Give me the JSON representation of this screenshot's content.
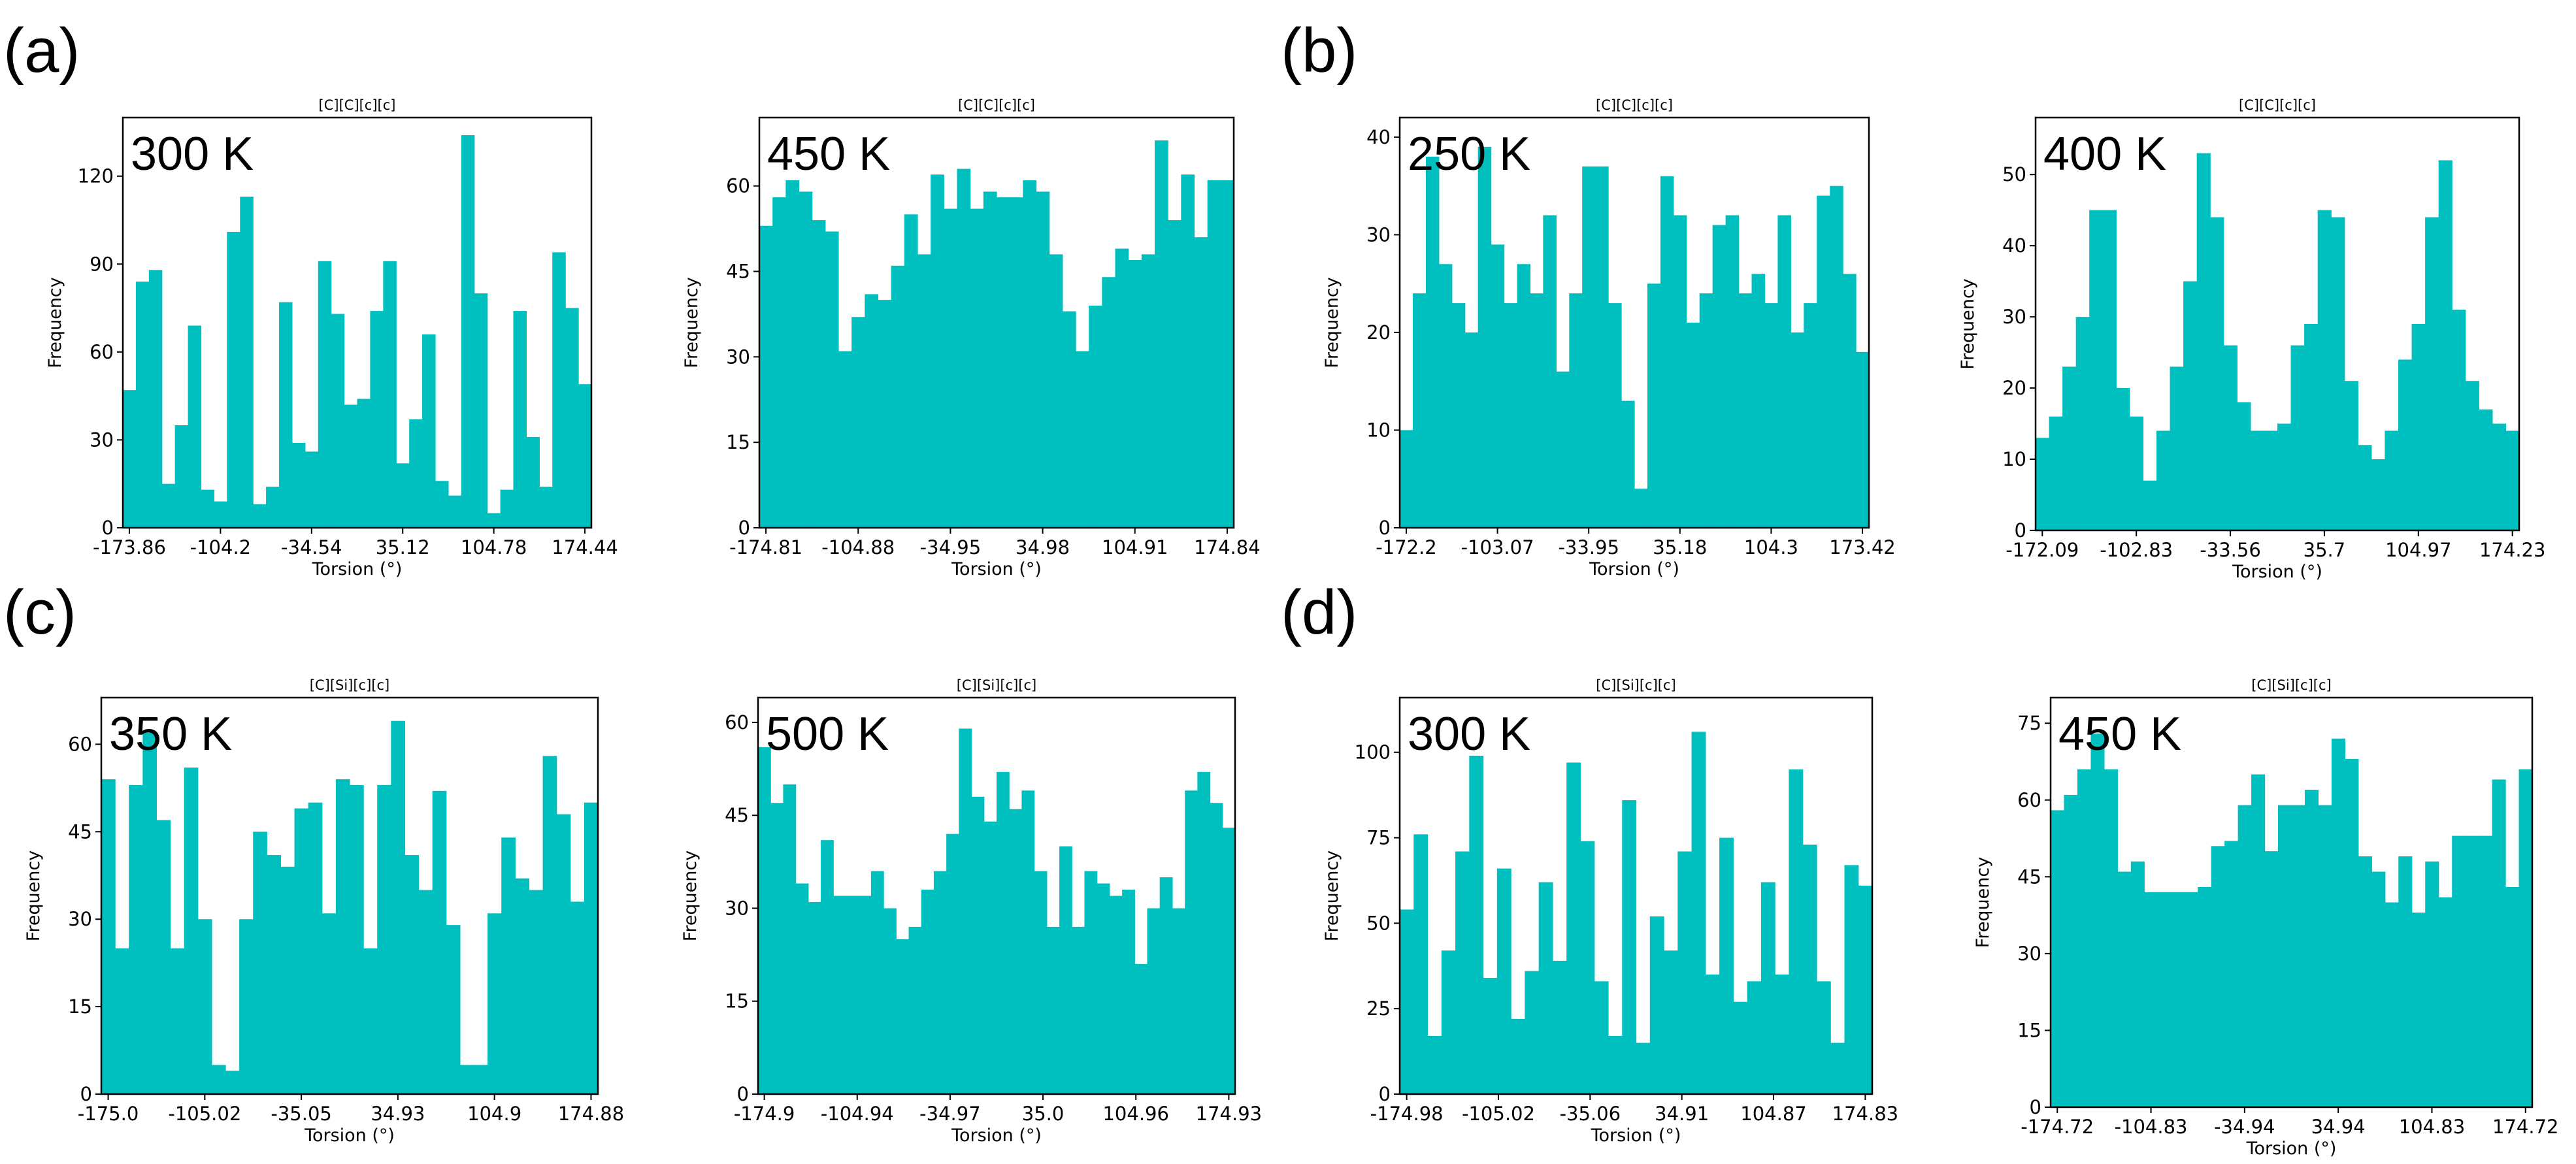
{
  "figure": {
    "panel_labels": [
      "(a)",
      "(b)",
      "(c)",
      "(d)"
    ],
    "bar_color": "#00BFBF"
  },
  "chart_data": [
    {
      "type": "bar",
      "panel": "a",
      "title": "[C][C][c][c]",
      "annotation": "300 K",
      "xlabel": "Torsion (°)",
      "ylabel": "Frequency",
      "xticks": [
        "-173.86",
        "-104.2",
        "-34.54",
        "35.12",
        "104.78",
        "174.44"
      ],
      "yticks": [
        0,
        30,
        60,
        90,
        120
      ],
      "ylim": [
        0,
        140
      ],
      "values": [
        47,
        84,
        88,
        15,
        35,
        69,
        13,
        9,
        101,
        113,
        8,
        14,
        77,
        29,
        26,
        91,
        73,
        42,
        44,
        74,
        91,
        22,
        37,
        66,
        16,
        11,
        134,
        80,
        5,
        13,
        74,
        31,
        14,
        94,
        75,
        49
      ]
    },
    {
      "type": "bar",
      "panel": "a",
      "title": "[C][C][c][c]",
      "annotation": "450 K",
      "xlabel": "Torsion (°)",
      "ylabel": "Frequency",
      "xticks": [
        "-174.81",
        "-104.88",
        "-34.95",
        "34.98",
        "104.91",
        "174.84"
      ],
      "yticks": [
        0,
        15,
        30,
        45,
        60
      ],
      "ylim": [
        0,
        72
      ],
      "values": [
        53,
        58,
        61,
        59,
        54,
        52,
        31,
        37,
        41,
        40,
        46,
        55,
        48,
        62,
        56,
        63,
        56,
        59,
        58,
        58,
        61,
        59,
        48,
        38,
        31,
        39,
        44,
        49,
        47,
        48,
        68,
        54,
        62,
        51,
        61,
        61
      ]
    },
    {
      "type": "bar",
      "panel": "b",
      "title": "[C][C][c][c]",
      "annotation": "250 K",
      "xlabel": "Torsion (°)",
      "ylabel": "Frequency",
      "xticks": [
        "-172.2",
        "-103.07",
        "-33.95",
        "35.18",
        "104.3",
        "173.42"
      ],
      "yticks": [
        0,
        10,
        20,
        30,
        40
      ],
      "ylim": [
        0,
        42
      ],
      "values": [
        10,
        24,
        38,
        27,
        23,
        20,
        39,
        29,
        23,
        27,
        24,
        32,
        16,
        24,
        37,
        37,
        23,
        13,
        4,
        25,
        36,
        32,
        21,
        24,
        31,
        32,
        24,
        26,
        23,
        32,
        20,
        23,
        34,
        35,
        26,
        18
      ]
    },
    {
      "type": "bar",
      "panel": "b",
      "title": "[C][C][c][c]",
      "annotation": "400 K",
      "xlabel": "Torsion (°)",
      "ylabel": "Frequency",
      "xticks": [
        "-172.09",
        "-102.83",
        "-33.56",
        "35.7",
        "104.97",
        "174.23"
      ],
      "yticks": [
        0,
        10,
        20,
        30,
        40,
        50
      ],
      "ylim": [
        0,
        58
      ],
      "values": [
        13,
        16,
        23,
        30,
        45,
        45,
        20,
        16,
        7,
        14,
        23,
        35,
        53,
        44,
        26,
        18,
        14,
        14,
        15,
        26,
        29,
        45,
        44,
        21,
        12,
        10,
        14,
        24,
        29,
        44,
        52,
        31,
        21,
        17,
        15,
        14
      ]
    },
    {
      "type": "bar",
      "panel": "c",
      "title": "[C][Si][c][c]",
      "annotation": "350 K",
      "xlabel": "Torsion (°)",
      "ylabel": "Frequency",
      "xticks": [
        "-175.0",
        "-105.02",
        "-35.05",
        "34.93",
        "104.9",
        "174.88"
      ],
      "yticks": [
        0,
        15,
        30,
        45,
        60
      ],
      "ylim": [
        0,
        68
      ],
      "values": [
        54,
        25,
        53,
        62,
        47,
        25,
        56,
        30,
        5,
        4,
        30,
        45,
        41,
        39,
        49,
        50,
        31,
        54,
        53,
        25,
        53,
        64,
        41,
        35,
        52,
        29,
        5,
        5,
        31,
        44,
        37,
        35,
        58,
        48,
        33,
        50
      ]
    },
    {
      "type": "bar",
      "panel": "c",
      "title": "[C][Si][c][c]",
      "annotation": "500 K",
      "xlabel": "Torsion (°)",
      "ylabel": "Frequency",
      "xticks": [
        "-174.9",
        "-104.94",
        "-34.97",
        "35.0",
        "104.96",
        "174.93"
      ],
      "yticks": [
        0,
        15,
        30,
        45,
        60
      ],
      "ylim": [
        0,
        64
      ],
      "values": [
        56,
        47,
        50,
        34,
        31,
        41,
        32,
        32,
        32,
        36,
        30,
        25,
        27,
        33,
        36,
        42,
        59,
        48,
        44,
        52,
        46,
        49,
        36,
        27,
        40,
        27,
        36,
        34,
        32,
        33,
        21,
        30,
        35,
        30,
        49,
        52,
        47,
        43
      ]
    },
    {
      "type": "bar",
      "panel": "d",
      "title": "[C][Si][c][c]",
      "annotation": "300 K",
      "xlabel": "Torsion (°)",
      "ylabel": "Frequency",
      "xticks": [
        "-174.98",
        "-105.02",
        "-35.06",
        "34.91",
        "104.87",
        "174.83"
      ],
      "yticks": [
        0,
        25,
        50,
        75,
        100
      ],
      "ylim": [
        0,
        116
      ],
      "values": [
        54,
        76,
        17,
        42,
        71,
        99,
        34,
        66,
        22,
        36,
        62,
        39,
        97,
        74,
        33,
        17,
        86,
        15,
        52,
        42,
        71,
        106,
        35,
        75,
        27,
        33,
        62,
        35,
        95,
        73,
        33,
        15,
        67,
        61
      ]
    },
    {
      "type": "bar",
      "panel": "d",
      "title": "[C][Si][c][c]",
      "annotation": "450 K",
      "xlabel": "Torsion (°)",
      "ylabel": "Frequency",
      "xticks": [
        "-174.72",
        "-104.83",
        "-34.94",
        "34.94",
        "104.83",
        "174.72"
      ],
      "yticks": [
        0,
        15,
        30,
        45,
        60,
        75
      ],
      "ylim": [
        0,
        80
      ],
      "values": [
        58,
        61,
        66,
        73,
        66,
        46,
        48,
        42,
        42,
        42,
        42,
        43,
        51,
        52,
        59,
        65,
        50,
        59,
        59,
        62,
        59,
        72,
        68,
        49,
        46,
        40,
        49,
        38,
        48,
        41,
        53,
        53,
        53,
        64,
        43,
        66
      ]
    }
  ]
}
